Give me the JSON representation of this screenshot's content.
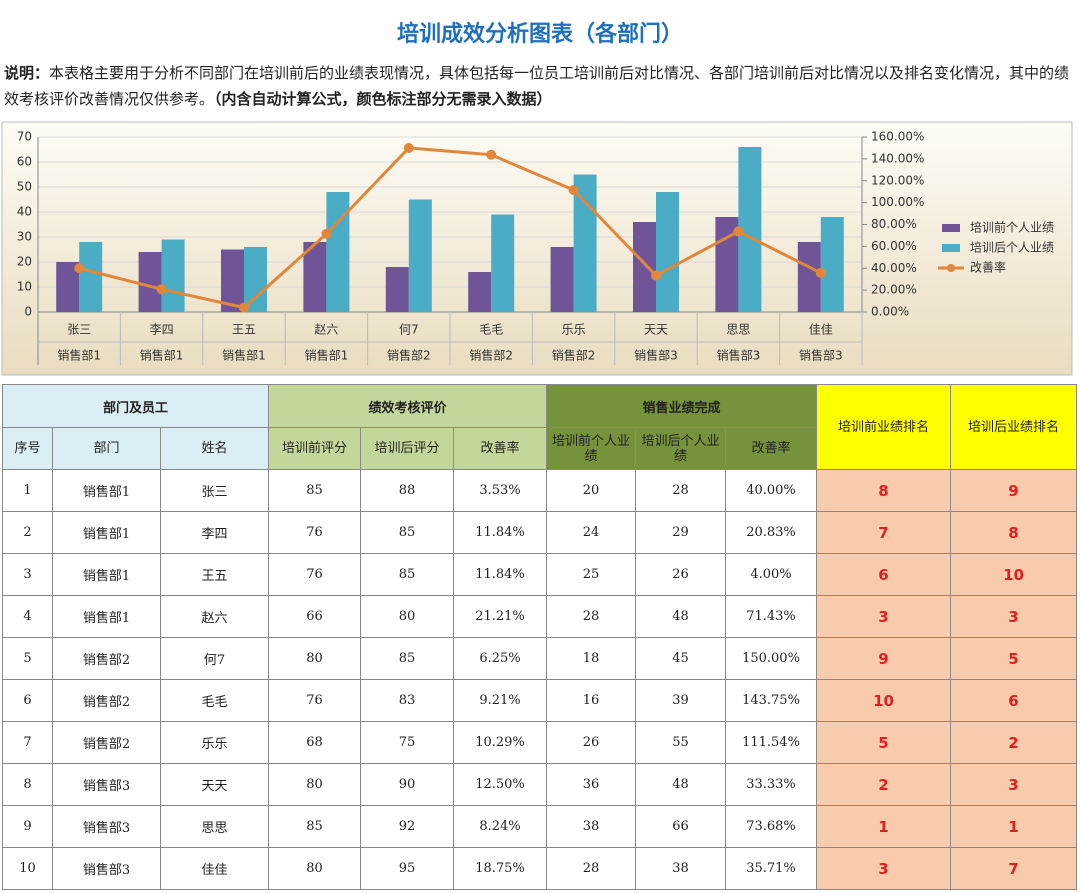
{
  "title": "培训成效分析图表（各部门）",
  "description": {
    "label": "说明：",
    "text": "本表格主要用于分析不同部门在培训前后的业绩表现情况，具体包括每一位员工培训前后对比情况、各部门培训前后对比情况以及排名变化情况，其中的绩效考核评价改善情况仅供参考。",
    "note": "（内含自动计算公式，颜色标注部分无需录入数据）"
  },
  "chart_data": {
    "type": "bar",
    "categories": [
      "张三",
      "李四",
      "王五",
      "赵六",
      "何7",
      "毛毛",
      "乐乐",
      "天天",
      "思思",
      "佳佳"
    ],
    "category_groups": [
      "销售部1",
      "销售部1",
      "销售部1",
      "销售部1",
      "销售部2",
      "销售部2",
      "销售部2",
      "销售部3",
      "销售部3",
      "销售部3"
    ],
    "series": [
      {
        "name": "培训前个人业绩",
        "type": "bar",
        "color": "#6f5597",
        "values": [
          20,
          24,
          25,
          28,
          18,
          16,
          26,
          36,
          38,
          28
        ]
      },
      {
        "name": "培训后个人业绩",
        "type": "bar",
        "color": "#4bacc6",
        "values": [
          28,
          29,
          26,
          48,
          45,
          39,
          55,
          48,
          66,
          38
        ]
      },
      {
        "name": "改善率",
        "type": "line",
        "axis": "y2",
        "color": "#e0873a",
        "values": [
          40,
          20.83,
          4,
          71.43,
          150,
          143.75,
          111.54,
          33.33,
          73.68,
          35.71
        ]
      }
    ],
    "ylim": [
      0,
      70
    ],
    "yticks": [
      0,
      10,
      20,
      30,
      40,
      50,
      60,
      70
    ],
    "y2lim": [
      0,
      160
    ],
    "y2ticks": [
      {
        "value": 0,
        "label": "0.00%"
      },
      {
        "value": 20,
        "label": "20.00%"
      },
      {
        "value": 40,
        "label": "40.00%"
      },
      {
        "value": 60,
        "label": "60.00%"
      },
      {
        "value": 80,
        "label": "80.00%"
      },
      {
        "value": 100,
        "label": "100.00%"
      },
      {
        "value": 120,
        "label": "120.00%"
      },
      {
        "value": 140,
        "label": "140.00%"
      },
      {
        "value": 160,
        "label": "160.00%"
      }
    ],
    "grid": true,
    "legend": "right"
  },
  "table": {
    "group_headers": [
      "部门及员工",
      "绩效考核评价",
      "销售业绩完成"
    ],
    "rank_headers": [
      "培训前业绩排名",
      "培训后业绩排名"
    ],
    "columns": [
      "序号",
      "部门",
      "姓名",
      "培训前评分",
      "培训后评分",
      "改善率",
      "培训前个人业绩",
      "培训后个人业绩",
      "改善率"
    ],
    "rows": [
      [
        1,
        "销售部1",
        "张三",
        85,
        88,
        "3.53%",
        20,
        28,
        "40.00%",
        8,
        9
      ],
      [
        2,
        "销售部1",
        "李四",
        76,
        85,
        "11.84%",
        24,
        29,
        "20.83%",
        7,
        8
      ],
      [
        3,
        "销售部1",
        "王五",
        76,
        85,
        "11.84%",
        25,
        26,
        "4.00%",
        6,
        10
      ],
      [
        4,
        "销售部1",
        "赵六",
        66,
        80,
        "21.21%",
        28,
        48,
        "71.43%",
        3,
        3
      ],
      [
        5,
        "销售部2",
        "何7",
        80,
        85,
        "6.25%",
        18,
        45,
        "150.00%",
        9,
        5
      ],
      [
        6,
        "销售部2",
        "毛毛",
        76,
        83,
        "9.21%",
        16,
        39,
        "143.75%",
        10,
        6
      ],
      [
        7,
        "销售部2",
        "乐乐",
        68,
        75,
        "10.29%",
        26,
        55,
        "111.54%",
        5,
        2
      ],
      [
        8,
        "销售部3",
        "天天",
        80,
        90,
        "12.50%",
        36,
        48,
        "33.33%",
        2,
        3
      ],
      [
        9,
        "销售部3",
        "思思",
        85,
        92,
        "8.24%",
        38,
        66,
        "73.68%",
        1,
        1
      ],
      [
        10,
        "销售部3",
        "佳佳",
        80,
        95,
        "18.75%",
        28,
        38,
        "35.71%",
        3,
        7
      ]
    ]
  }
}
